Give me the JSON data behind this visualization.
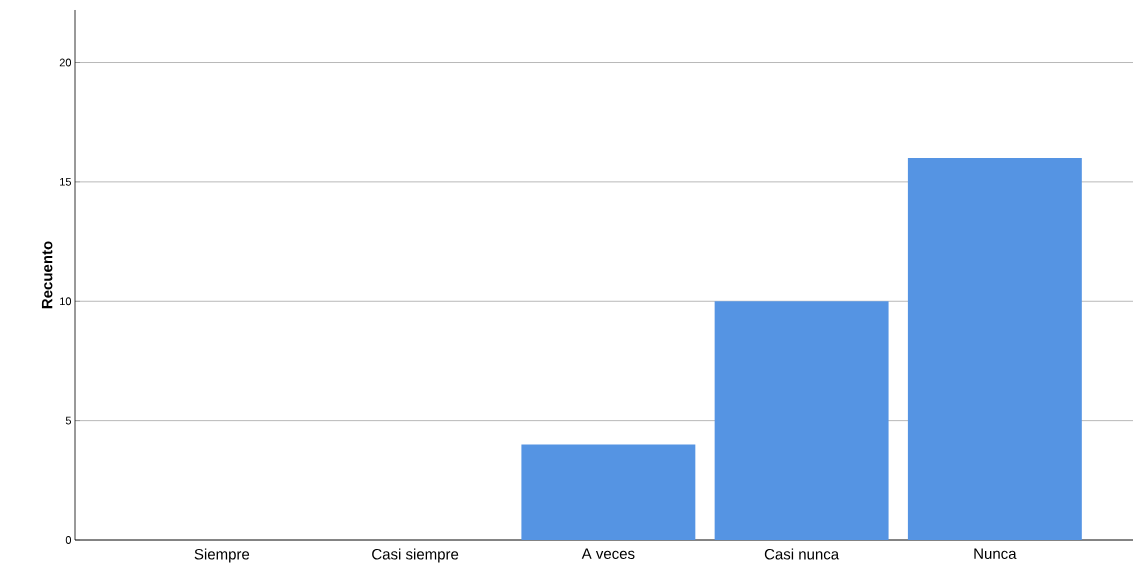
{
  "chart_data": {
    "type": "bar",
    "ylabel": "Recuento",
    "categories": [
      "Siempre",
      "Casi siempre",
      "A veces",
      "Casi nunca",
      "Nunca"
    ],
    "values": [
      0,
      0,
      4,
      10,
      16
    ],
    "color": "#5594e3",
    "ylim": [
      0,
      22.2
    ],
    "yticks": [
      0,
      5,
      10,
      15,
      20
    ],
    "grid": "y"
  }
}
